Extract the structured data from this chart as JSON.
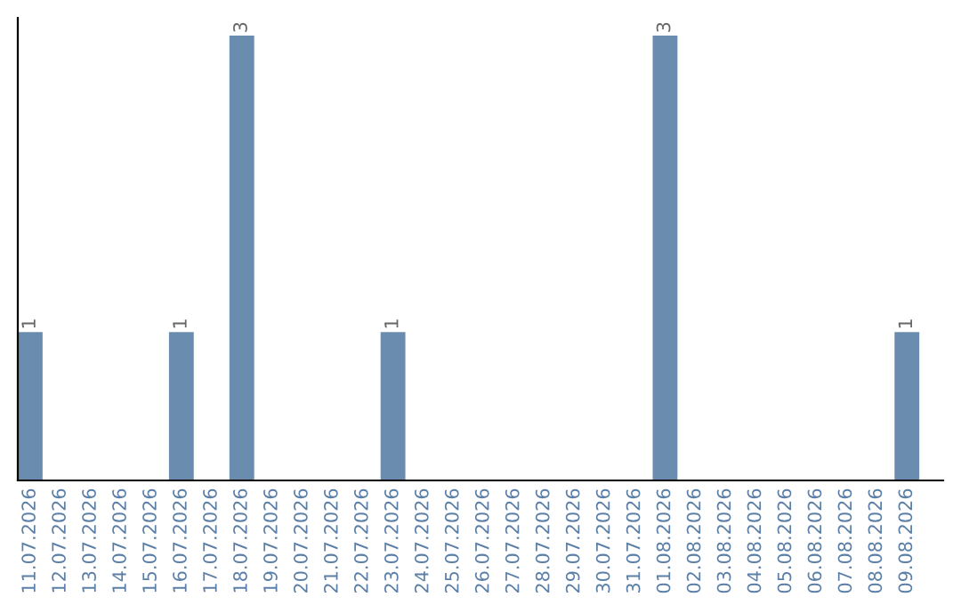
{
  "chart_data": {
    "type": "bar",
    "categories": [
      "11.07.2026",
      "12.07.2026",
      "13.07.2026",
      "14.07.2026",
      "15.07.2026",
      "16.07.2026",
      "17.07.2026",
      "18.07.2026",
      "19.07.2026",
      "20.07.2026",
      "21.07.2026",
      "22.07.2026",
      "23.07.2026",
      "24.07.2026",
      "25.07.2026",
      "26.07.2026",
      "27.07.2026",
      "28.07.2026",
      "29.07.2026",
      "30.07.2026",
      "31.07.2026",
      "01.08.2026",
      "02.08.2026",
      "03.08.2026",
      "04.08.2026",
      "05.08.2026",
      "06.08.2026",
      "07.08.2026",
      "08.08.2026",
      "09.08.2026"
    ],
    "values": [
      1,
      0,
      0,
      0,
      0,
      1,
      0,
      3,
      0,
      0,
      0,
      0,
      1,
      0,
      0,
      0,
      0,
      0,
      0,
      0,
      0,
      3,
      0,
      0,
      0,
      0,
      0,
      0,
      0,
      1
    ],
    "value_labels": [
      "1",
      null,
      null,
      null,
      null,
      "1",
      null,
      "3",
      null,
      null,
      null,
      null,
      "1",
      null,
      null,
      null,
      null,
      null,
      null,
      null,
      null,
      "3",
      null,
      null,
      null,
      null,
      null,
      null,
      null,
      "1"
    ],
    "color": "#6a8caf",
    "tick_labels": "x",
    "grid": false,
    "legend": false
  }
}
